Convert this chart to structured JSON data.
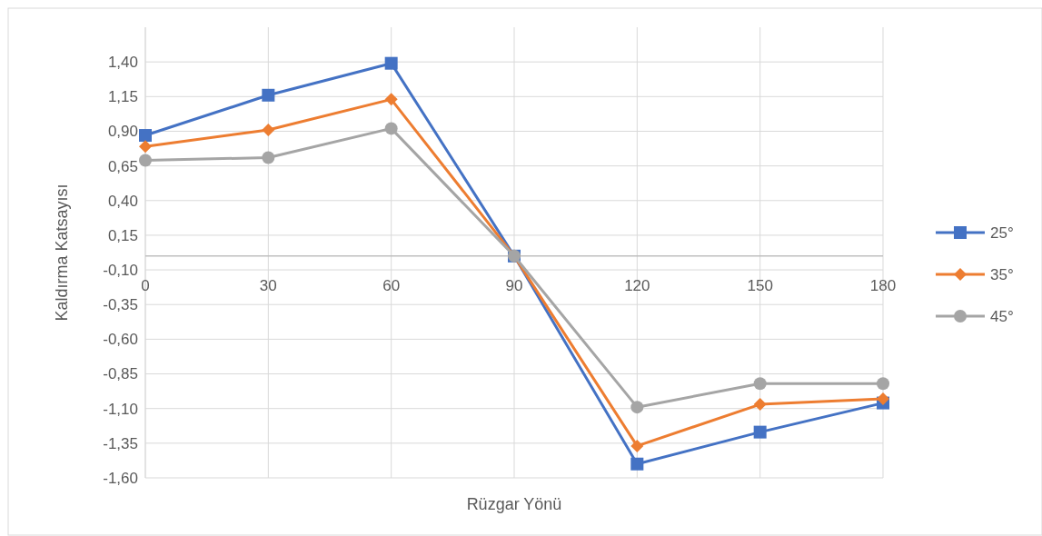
{
  "chart_data": {
    "type": "line",
    "xlabel": "Rüzgar Yönü",
    "ylabel": "Kaldırma Katsayısı",
    "categories": [
      "0",
      "30",
      "60",
      "90",
      "120",
      "150",
      "180"
    ],
    "series": [
      {
        "name": "25°",
        "color": "#4472c4",
        "marker": "square",
        "values": [
          0.87,
          1.16,
          1.39,
          0,
          -1.5,
          -1.27,
          -1.06
        ]
      },
      {
        "name": "35°",
        "color": "#ed7d31",
        "marker": "diamond",
        "values": [
          0.79,
          0.91,
          1.13,
          0,
          -1.37,
          -1.07,
          -1.03
        ]
      },
      {
        "name": "45°",
        "color": "#a5a5a5",
        "marker": "circle",
        "values": [
          0.69,
          0.71,
          0.92,
          0,
          -1.09,
          -0.92,
          -0.92
        ]
      }
    ],
    "ylim": [
      -1.6,
      1.65
    ],
    "yticks": [
      {
        "value": 1.4,
        "label": "1,40"
      },
      {
        "value": 1.15,
        "label": "1,15"
      },
      {
        "value": 0.9,
        "label": "0,90"
      },
      {
        "value": 0.65,
        "label": "0,65"
      },
      {
        "value": 0.4,
        "label": "0,40"
      },
      {
        "value": 0.15,
        "label": "0,15"
      },
      {
        "value": -0.1,
        "label": "-0,10"
      },
      {
        "value": -0.35,
        "label": "-0,35"
      },
      {
        "value": -0.6,
        "label": "-0,60"
      },
      {
        "value": -0.85,
        "label": "-0,85"
      },
      {
        "value": -1.1,
        "label": "-1,10"
      },
      {
        "value": -1.35,
        "label": "-1,35"
      },
      {
        "value": -1.6,
        "label": "-1,60"
      }
    ],
    "grid": true,
    "legend": "right",
    "line_style": "solid"
  }
}
